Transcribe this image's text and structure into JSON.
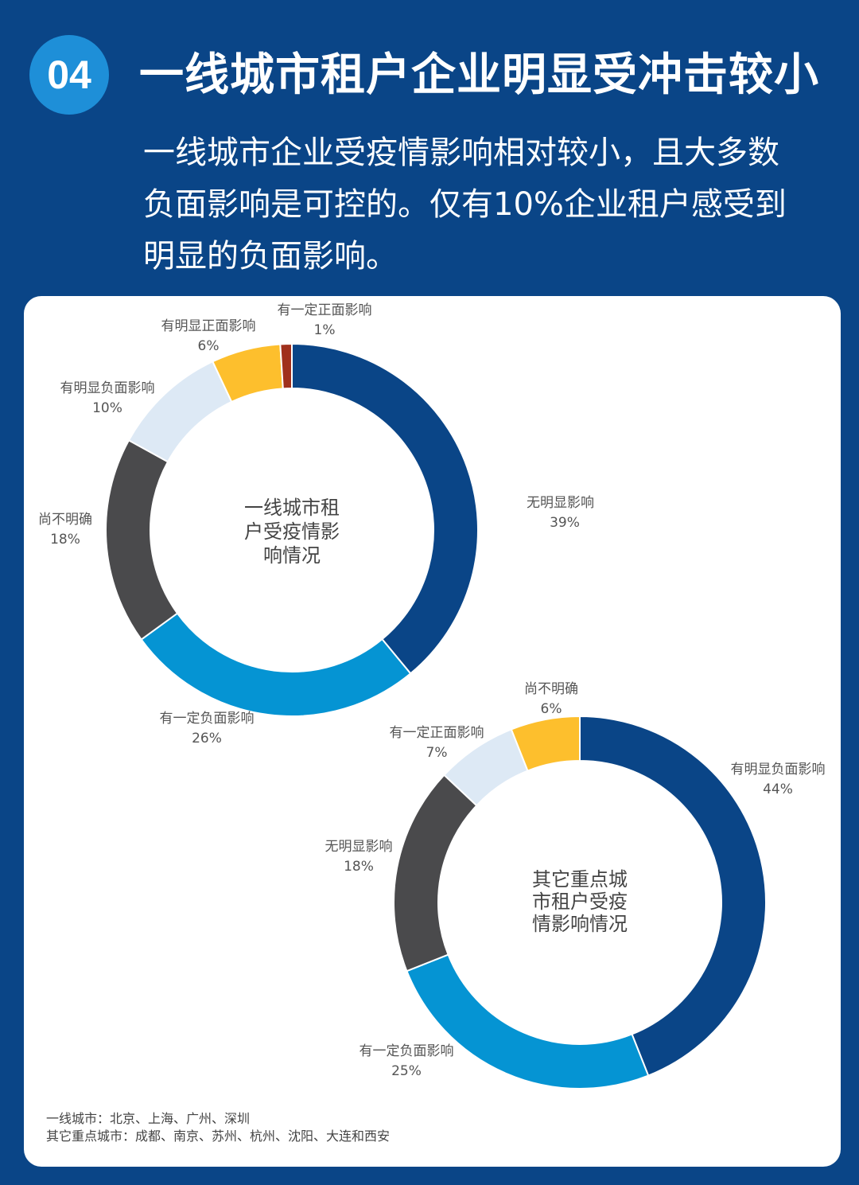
{
  "header": {
    "badge": "04",
    "title": "一线城市租户企业明显受冲击较小",
    "subtitle_lines": [
      "一线城市企业受疫情影响相对较小，且大多数",
      "负面影响是可控的。仅有10%企业租户感受到",
      "明显的负面影响。"
    ]
  },
  "chart_data": [
    {
      "type": "pie",
      "center_lines": [
        "一线城市租",
        "户受疫情影",
        "响情况"
      ],
      "slices": [
        {
          "name": "无明显影响",
          "value": 39,
          "label": "39%",
          "color": "#0a4587"
        },
        {
          "name": "有一定负面影响",
          "value": 26,
          "label": "26%",
          "color": "#0594d3"
        },
        {
          "name": "尚不明确",
          "value": 18,
          "label": "18%",
          "color": "#4a4a4c"
        },
        {
          "name": "有明显负面影响",
          "value": 10,
          "label": "10%",
          "color": "#dde9f5"
        },
        {
          "name": "有明显正面影响",
          "value": 6,
          "label": "6%",
          "color": "#fdbf2d"
        },
        {
          "name": "有一定正面影响",
          "value": 1,
          "label": "1%",
          "color": "#a0301c"
        }
      ]
    },
    {
      "type": "pie",
      "center_lines": [
        "其它重点城",
        "市租户受疫",
        "情影响情况"
      ],
      "slices": [
        {
          "name": "有明显负面影响",
          "value": 44,
          "label": "44%",
          "color": "#0a4587"
        },
        {
          "name": "有一定负面影响",
          "value": 25,
          "label": "25%",
          "color": "#0594d3"
        },
        {
          "name": "无明显影响",
          "value": 18,
          "label": "18%",
          "color": "#4a4a4c"
        },
        {
          "name": "有一定正面影响",
          "value": 7,
          "label": "7%",
          "color": "#dde9f5"
        },
        {
          "name": "尚不明确",
          "value": 6,
          "label": "6%",
          "color": "#fdbf2d"
        }
      ]
    }
  ],
  "footnotes": [
    "一线城市：北京、上海、广州、深圳",
    "其它重点城市：成都、南京、苏州、杭州、沈阳、大连和西安"
  ]
}
